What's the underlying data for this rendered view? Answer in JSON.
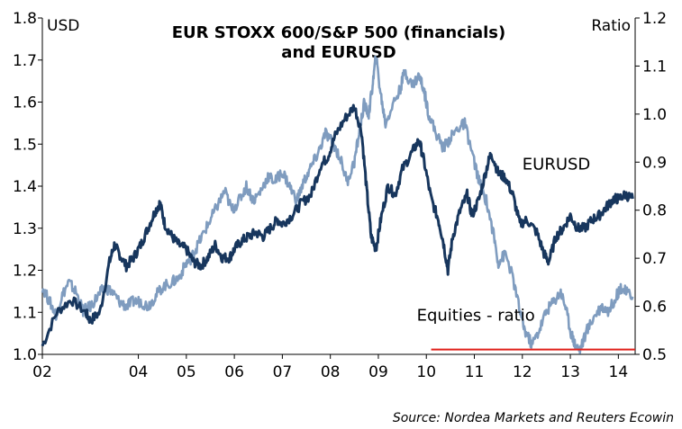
{
  "chart_data": {
    "type": "line",
    "title_line1": "EUR STOXX 600/S&P 500  (financials)",
    "title_line2": "and EURUSD",
    "left_axis": {
      "label": "USD",
      "ylim": [
        1.0,
        1.8
      ],
      "ticks": [
        "1.0",
        "1.1",
        "1.2",
        "1.3",
        "1.4",
        "1.5",
        "1.6",
        "1.7",
        "1.8"
      ]
    },
    "right_axis": {
      "label": "Ratio",
      "ylim": [
        0.5,
        1.2
      ],
      "ticks": [
        "0.5",
        "0.6",
        "0.7",
        "0.8",
        "0.9",
        "1.0",
        "1.1",
        "1.2"
      ]
    },
    "x_ticks": [
      "02",
      "04",
      "05",
      "06",
      "07",
      "08",
      "09",
      "10",
      "11",
      "12",
      "13",
      "14"
    ],
    "x_tick_values": [
      2002,
      2004,
      2005,
      2006,
      2007,
      2008,
      2009,
      2010,
      2011,
      2012,
      2013,
      2014
    ],
    "xlim": [
      2002,
      2014.35
    ],
    "series": [
      {
        "name": "EURUSD",
        "axis": "left",
        "color": "#17365d",
        "points": [
          [
            2002.0,
            1.02
          ],
          [
            2002.3,
            1.1
          ],
          [
            2002.6,
            1.13
          ],
          [
            2002.9,
            1.1
          ],
          [
            2003.0,
            1.08
          ],
          [
            2003.2,
            1.1
          ],
          [
            2003.4,
            1.22
          ],
          [
            2003.5,
            1.26
          ],
          [
            2003.6,
            1.24
          ],
          [
            2003.75,
            1.21
          ],
          [
            2003.9,
            1.23
          ],
          [
            2004.05,
            1.26
          ],
          [
            2004.2,
            1.3
          ],
          [
            2004.35,
            1.34
          ],
          [
            2004.45,
            1.36
          ],
          [
            2004.55,
            1.31
          ],
          [
            2004.7,
            1.28
          ],
          [
            2004.85,
            1.26
          ],
          [
            2005.0,
            1.25
          ],
          [
            2005.15,
            1.22
          ],
          [
            2005.3,
            1.21
          ],
          [
            2005.45,
            1.23
          ],
          [
            2005.6,
            1.26
          ],
          [
            2005.75,
            1.23
          ],
          [
            2005.9,
            1.23
          ],
          [
            2006.0,
            1.25
          ],
          [
            2006.15,
            1.27
          ],
          [
            2006.3,
            1.28
          ],
          [
            2006.45,
            1.29
          ],
          [
            2006.6,
            1.28
          ],
          [
            2006.75,
            1.3
          ],
          [
            2006.9,
            1.32
          ],
          [
            2007.0,
            1.31
          ],
          [
            2007.2,
            1.33
          ],
          [
            2007.4,
            1.36
          ],
          [
            2007.6,
            1.38
          ],
          [
            2007.8,
            1.45
          ],
          [
            2007.95,
            1.47
          ],
          [
            2008.1,
            1.52
          ],
          [
            2008.3,
            1.56
          ],
          [
            2008.5,
            1.59
          ],
          [
            2008.65,
            1.53
          ],
          [
            2008.75,
            1.4
          ],
          [
            2008.85,
            1.28
          ],
          [
            2008.95,
            1.25
          ],
          [
            2009.05,
            1.32
          ],
          [
            2009.2,
            1.4
          ],
          [
            2009.35,
            1.38
          ],
          [
            2009.5,
            1.44
          ],
          [
            2009.7,
            1.48
          ],
          [
            2009.85,
            1.51
          ],
          [
            2009.95,
            1.46
          ],
          [
            2010.1,
            1.37
          ],
          [
            2010.25,
            1.32
          ],
          [
            2010.35,
            1.27
          ],
          [
            2010.45,
            1.2
          ],
          [
            2010.55,
            1.28
          ],
          [
            2010.7,
            1.34
          ],
          [
            2010.85,
            1.38
          ],
          [
            2010.95,
            1.33
          ],
          [
            2011.1,
            1.37
          ],
          [
            2011.25,
            1.44
          ],
          [
            2011.35,
            1.48
          ],
          [
            2011.5,
            1.43
          ],
          [
            2011.65,
            1.42
          ],
          [
            2011.8,
            1.38
          ],
          [
            2011.95,
            1.31
          ],
          [
            2012.1,
            1.32
          ],
          [
            2012.3,
            1.29
          ],
          [
            2012.45,
            1.24
          ],
          [
            2012.55,
            1.22
          ],
          [
            2012.7,
            1.28
          ],
          [
            2012.85,
            1.3
          ],
          [
            2013.0,
            1.33
          ],
          [
            2013.15,
            1.3
          ],
          [
            2013.3,
            1.3
          ],
          [
            2013.45,
            1.32
          ],
          [
            2013.6,
            1.33
          ],
          [
            2013.75,
            1.35
          ],
          [
            2013.9,
            1.37
          ],
          [
            2014.0,
            1.37
          ],
          [
            2014.15,
            1.38
          ],
          [
            2014.3,
            1.37
          ]
        ]
      },
      {
        "name": "Equities - ratio",
        "axis": "right",
        "color": "#7f9cbf",
        "points": [
          [
            2002.0,
            0.64
          ],
          [
            2002.15,
            0.61
          ],
          [
            2002.3,
            0.58
          ],
          [
            2002.4,
            0.62
          ],
          [
            2002.55,
            0.65
          ],
          [
            2002.7,
            0.63
          ],
          [
            2002.85,
            0.59
          ],
          [
            2003.0,
            0.6
          ],
          [
            2003.15,
            0.62
          ],
          [
            2003.3,
            0.64
          ],
          [
            2003.45,
            0.63
          ],
          [
            2003.6,
            0.61
          ],
          [
            2003.75,
            0.6
          ],
          [
            2003.9,
            0.61
          ],
          [
            2004.05,
            0.61
          ],
          [
            2004.2,
            0.6
          ],
          [
            2004.35,
            0.62
          ],
          [
            2004.5,
            0.64
          ],
          [
            2004.7,
            0.65
          ],
          [
            2004.85,
            0.66
          ],
          [
            2005.0,
            0.69
          ],
          [
            2005.1,
            0.7
          ],
          [
            2005.2,
            0.72
          ],
          [
            2005.35,
            0.75
          ],
          [
            2005.5,
            0.78
          ],
          [
            2005.65,
            0.81
          ],
          [
            2005.8,
            0.84
          ],
          [
            2005.95,
            0.8
          ],
          [
            2006.1,
            0.82
          ],
          [
            2006.25,
            0.85
          ],
          [
            2006.4,
            0.82
          ],
          [
            2006.55,
            0.84
          ],
          [
            2006.7,
            0.87
          ],
          [
            2006.85,
            0.86
          ],
          [
            2007.0,
            0.88
          ],
          [
            2007.15,
            0.85
          ],
          [
            2007.3,
            0.82
          ],
          [
            2007.45,
            0.86
          ],
          [
            2007.6,
            0.89
          ],
          [
            2007.75,
            0.92
          ],
          [
            2007.9,
            0.96
          ],
          [
            2008.05,
            0.94
          ],
          [
            2008.2,
            0.91
          ],
          [
            2008.35,
            0.86
          ],
          [
            2008.5,
            0.9
          ],
          [
            2008.6,
            0.96
          ],
          [
            2008.7,
            1.02
          ],
          [
            2008.8,
            1.0
          ],
          [
            2008.88,
            1.06
          ],
          [
            2008.95,
            1.12
          ],
          [
            2009.05,
            1.04
          ],
          [
            2009.15,
            0.98
          ],
          [
            2009.3,
            1.02
          ],
          [
            2009.45,
            1.05
          ],
          [
            2009.55,
            1.09
          ],
          [
            2009.7,
            1.06
          ],
          [
            2009.85,
            1.08
          ],
          [
            2009.95,
            1.05
          ],
          [
            2010.05,
            1.0
          ],
          [
            2010.2,
            0.96
          ],
          [
            2010.35,
            0.93
          ],
          [
            2010.5,
            0.95
          ],
          [
            2010.65,
            0.97
          ],
          [
            2010.8,
            0.98
          ],
          [
            2010.95,
            0.92
          ],
          [
            2011.1,
            0.86
          ],
          [
            2011.25,
            0.82
          ],
          [
            2011.4,
            0.75
          ],
          [
            2011.5,
            0.69
          ],
          [
            2011.65,
            0.71
          ],
          [
            2011.8,
            0.66
          ],
          [
            2011.95,
            0.59
          ],
          [
            2012.05,
            0.55
          ],
          [
            2012.2,
            0.52
          ],
          [
            2012.35,
            0.55
          ],
          [
            2012.5,
            0.59
          ],
          [
            2012.65,
            0.61
          ],
          [
            2012.8,
            0.63
          ],
          [
            2012.9,
            0.6
          ],
          [
            2013.0,
            0.55
          ],
          [
            2013.1,
            0.52
          ],
          [
            2013.2,
            0.51
          ],
          [
            2013.35,
            0.55
          ],
          [
            2013.5,
            0.58
          ],
          [
            2013.65,
            0.6
          ],
          [
            2013.8,
            0.59
          ],
          [
            2013.95,
            0.62
          ],
          [
            2014.05,
            0.64
          ],
          [
            2014.15,
            0.63
          ],
          [
            2014.3,
            0.62
          ]
        ]
      }
    ],
    "reference_line": {
      "axis": "right",
      "y": 0.51,
      "x_from": 2010.1,
      "x_to": 2014.35,
      "color": "#e0201b"
    },
    "annotations": [
      {
        "text": "EURUSD",
        "x": 2012.0,
        "axis": "left",
        "y": 1.44
      },
      {
        "text": "Equities - ratio",
        "x": 2009.8,
        "axis": "left",
        "y": 1.08
      }
    ],
    "source": "Source: Nordea Markets and Reuters Ecowin"
  }
}
